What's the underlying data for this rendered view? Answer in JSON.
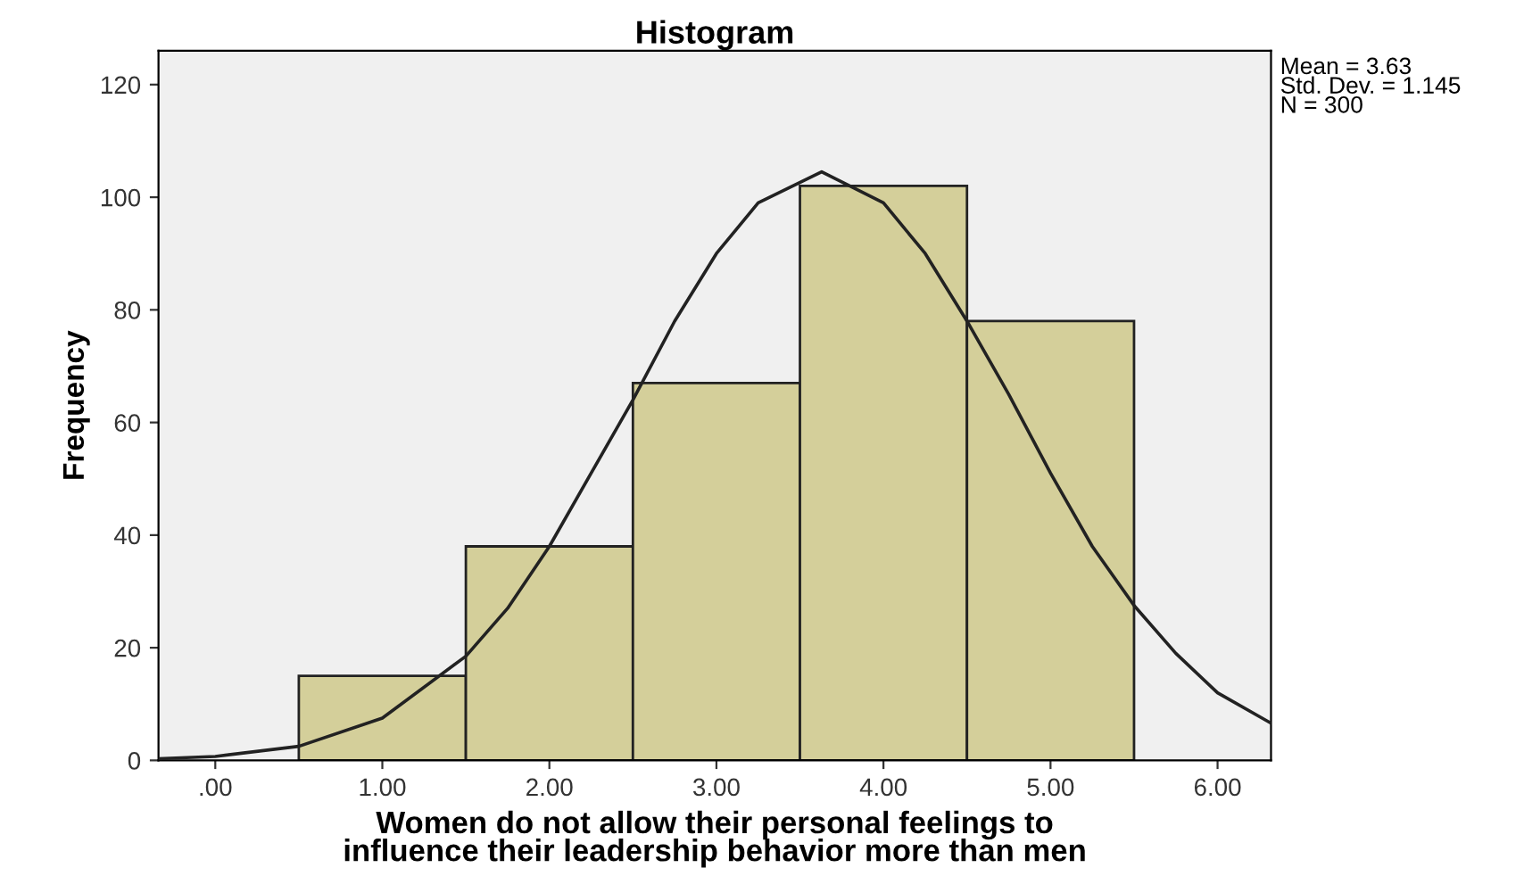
{
  "chart_data": {
    "type": "histogram",
    "title": "Histogram",
    "xlabel": "Women do not allow their personal feelings to\ninfluence their leadership behavior more than men",
    "ylabel": "Frequency",
    "bins": [
      0.5,
      1.5,
      2.5,
      3.5,
      4.5,
      5.5
    ],
    "values": [
      15,
      38,
      67,
      102,
      78
    ],
    "color": "#d4cf9a",
    "series": [
      {
        "type": "line",
        "color": "#222222",
        "x": [
          -0.34,
          0,
          0.5,
          1,
          1.5,
          1.75,
          2,
          2.25,
          2.5,
          2.75,
          3,
          3.25,
          3.63,
          4,
          4.25,
          4.5,
          4.75,
          5,
          5.25,
          5.5,
          5.75,
          6,
          6.32
        ],
        "values": [
          0.3,
          0.7,
          2.5,
          7.5,
          18.5,
          27,
          38,
          51,
          64,
          78,
          90,
          99,
          104.5,
          99,
          90,
          78,
          65,
          51,
          38,
          27.5,
          19,
          12,
          6.6
        ]
      }
    ],
    "xlim": [
      -0.34,
      6.32
    ],
    "ylim": [
      0,
      126
    ],
    "xticks": [
      {
        "value": 0,
        "label": ".00"
      },
      {
        "value": 1,
        "label": "1.00"
      },
      {
        "value": 2,
        "label": "2.00"
      },
      {
        "value": 3,
        "label": "3.00"
      },
      {
        "value": 4,
        "label": "4.00"
      },
      {
        "value": 5,
        "label": "5.00"
      },
      {
        "value": 6,
        "label": "6.00"
      }
    ],
    "yticks": [
      0,
      20,
      40,
      60,
      80,
      100,
      120
    ],
    "grid": false,
    "legend": false,
    "annotations": [
      "Mean = 3.63\nStd. Dev. = 1.145\nN = 300"
    ]
  }
}
